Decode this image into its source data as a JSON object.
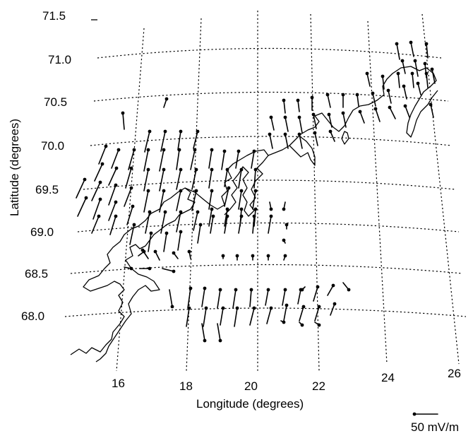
{
  "map": {
    "lat_ticks": [
      {
        "label": "71.5"
      },
      {
        "label": "71.0"
      },
      {
        "label": "70.5"
      },
      {
        "label": "70.0"
      },
      {
        "label": "69.5"
      },
      {
        "label": "69.0"
      },
      {
        "label": "68.5"
      },
      {
        "label": "68.0"
      }
    ],
    "lon_ticks": [
      {
        "label": "16"
      },
      {
        "label": "18"
      },
      {
        "label": "20"
      },
      {
        "label": "22"
      },
      {
        "label": "24"
      },
      {
        "label": "26"
      }
    ],
    "xlabel": "Longitude (degrees)",
    "ylabel": "Latitude (degrees)",
    "scale_label": "50 mV/m",
    "colors": {
      "ink": "#000000",
      "background": "#ffffff"
    }
  }
}
